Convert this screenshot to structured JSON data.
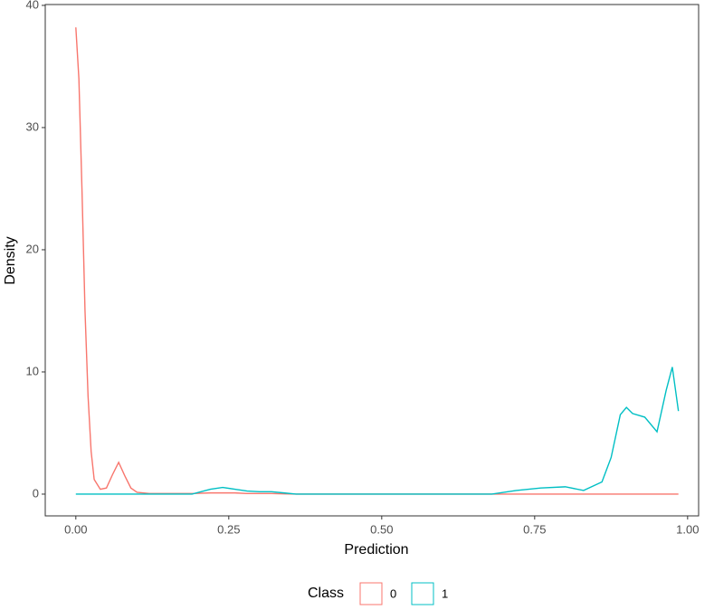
{
  "chart_data": {
    "type": "line",
    "x_label": "Prediction",
    "y_label": "Density",
    "legend_title": "Class",
    "x": [
      0,
      0.005,
      0.01,
      0.015,
      0.02,
      0.025,
      0.03,
      0.04,
      0.05,
      0.06,
      0.07,
      0.08,
      0.09,
      0.1,
      0.12,
      0.15,
      0.19,
      0.22,
      0.24,
      0.26,
      0.28,
      0.3,
      0.32,
      0.34,
      0.36,
      0.5,
      0.68,
      0.72,
      0.76,
      0.8,
      0.83,
      0.86,
      0.875,
      0.89,
      0.9,
      0.91,
      0.93,
      0.95,
      0.965,
      0.975,
      0.985
    ],
    "series": [
      {
        "name": "0",
        "color": "#F8766D",
        "values": [
          38.2,
          34,
          25,
          15,
          8,
          3.5,
          1.2,
          0.4,
          0.5,
          1.6,
          2.6,
          1.5,
          0.5,
          0.15,
          0.05,
          0.05,
          0.05,
          0.1,
          0.1,
          0.1,
          0.05,
          0.05,
          0.05,
          0.02,
          0,
          0,
          0,
          0,
          0,
          0,
          0,
          0,
          0,
          0,
          0,
          0,
          0,
          0,
          0,
          0,
          0
        ]
      },
      {
        "name": "1",
        "color": "#00BFC4",
        "values": [
          0,
          0,
          0,
          0,
          0,
          0,
          0,
          0,
          0,
          0,
          0,
          0,
          0,
          0,
          0,
          0,
          0,
          0.4,
          0.55,
          0.4,
          0.25,
          0.2,
          0.2,
          0.1,
          0,
          0,
          0,
          0.3,
          0.5,
          0.6,
          0.3,
          1.0,
          3,
          6.5,
          7.1,
          6.6,
          6.3,
          5.1,
          8.5,
          10.4,
          6.8
        ]
      }
    ],
    "xlim": [
      -0.05,
      1.018
    ],
    "xticks": [
      {
        "value": 0,
        "label": "0.00"
      },
      {
        "value": 0.25,
        "label": "0.25"
      },
      {
        "value": 0.5,
        "label": "0.50"
      },
      {
        "value": 0.75,
        "label": "0.75"
      },
      {
        "value": 1,
        "label": "1.00"
      }
    ],
    "ylim": [
      -1.78,
      40.07
    ],
    "yticks": [
      0,
      10,
      20,
      30,
      40
    ],
    "grid": false,
    "legend_position": "bottom"
  }
}
